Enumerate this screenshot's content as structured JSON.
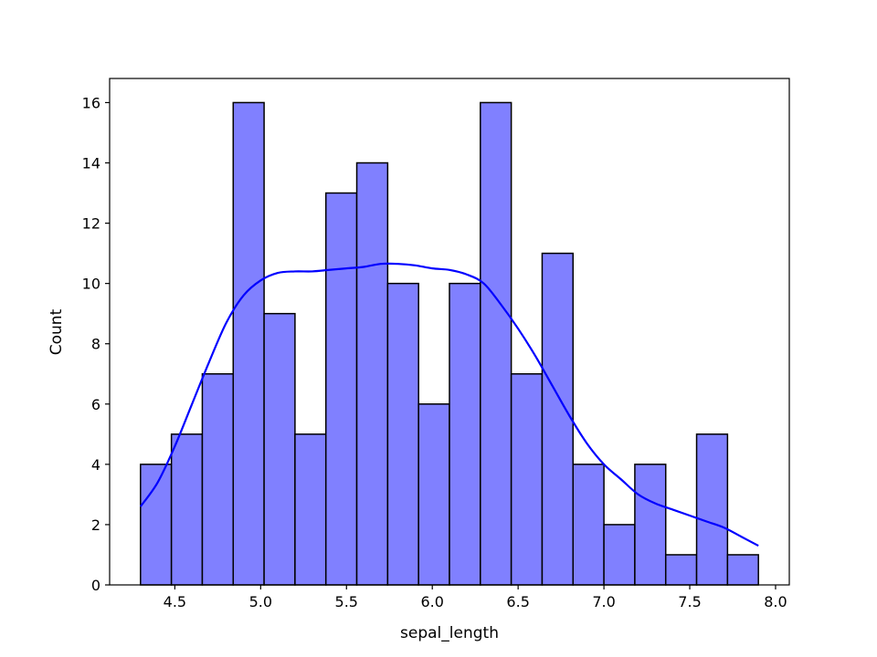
{
  "chart_data": {
    "type": "bar",
    "subtype": "histogram-with-kde",
    "xlabel": "sepal_length",
    "ylabel": "Count",
    "xlim": [
      4.12,
      8.08
    ],
    "ylim": [
      0,
      16.8
    ],
    "xticks": [
      "4.5",
      "5.0",
      "5.5",
      "6.0",
      "6.5",
      "7.0",
      "7.5",
      "8.0"
    ],
    "xtick_values": [
      4.5,
      5.0,
      5.5,
      6.0,
      6.5,
      7.0,
      7.5,
      8.0
    ],
    "yticks": [
      "0",
      "2",
      "4",
      "6",
      "8",
      "10",
      "12",
      "14",
      "16"
    ],
    "ytick_values": [
      0,
      2,
      4,
      6,
      8,
      10,
      12,
      14,
      16
    ],
    "bins": [
      {
        "start": 4.3,
        "end": 4.48,
        "count": 4
      },
      {
        "start": 4.48,
        "end": 4.66,
        "count": 5
      },
      {
        "start": 4.66,
        "end": 4.84,
        "count": 7
      },
      {
        "start": 4.84,
        "end": 5.02,
        "count": 16
      },
      {
        "start": 5.02,
        "end": 5.2,
        "count": 9
      },
      {
        "start": 5.2,
        "end": 5.38,
        "count": 5
      },
      {
        "start": 5.38,
        "end": 5.56,
        "count": 13
      },
      {
        "start": 5.56,
        "end": 5.74,
        "count": 14
      },
      {
        "start": 5.74,
        "end": 5.92,
        "count": 10
      },
      {
        "start": 5.92,
        "end": 6.1,
        "count": 6
      },
      {
        "start": 6.1,
        "end": 6.28,
        "count": 10
      },
      {
        "start": 6.28,
        "end": 6.46,
        "count": 16
      },
      {
        "start": 6.46,
        "end": 6.64,
        "count": 7
      },
      {
        "start": 6.64,
        "end": 6.82,
        "count": 11
      },
      {
        "start": 6.82,
        "end": 7.0,
        "count": 4
      },
      {
        "start": 7.0,
        "end": 7.18,
        "count": 2
      },
      {
        "start": 7.18,
        "end": 7.36,
        "count": 4
      },
      {
        "start": 7.36,
        "end": 7.54,
        "count": 1
      },
      {
        "start": 7.54,
        "end": 7.72,
        "count": 5
      },
      {
        "start": 7.72,
        "end": 7.9,
        "count": 1
      }
    ],
    "kde": {
      "x": [
        4.3,
        4.4,
        4.5,
        4.6,
        4.7,
        4.8,
        4.9,
        5.0,
        5.1,
        5.2,
        5.3,
        5.4,
        5.5,
        5.6,
        5.7,
        5.8,
        5.9,
        6.0,
        6.1,
        6.2,
        6.3,
        6.4,
        6.5,
        6.6,
        6.7,
        6.8,
        6.9,
        7.0,
        7.1,
        7.2,
        7.3,
        7.4,
        7.5,
        7.6,
        7.7,
        7.8,
        7.9
      ],
      "y": [
        2.6,
        3.4,
        4.6,
        6.0,
        7.4,
        8.7,
        9.6,
        10.1,
        10.35,
        10.4,
        10.4,
        10.45,
        10.5,
        10.55,
        10.65,
        10.65,
        10.6,
        10.5,
        10.45,
        10.3,
        10.0,
        9.3,
        8.5,
        7.6,
        6.6,
        5.6,
        4.7,
        4.0,
        3.5,
        3.0,
        2.7,
        2.5,
        2.3,
        2.1,
        1.9,
        1.6,
        1.3
      ]
    },
    "bar_fill": "#8080ff",
    "bar_edge": "#000000",
    "kde_color": "#0000ff",
    "grid": false,
    "legend": null
  }
}
